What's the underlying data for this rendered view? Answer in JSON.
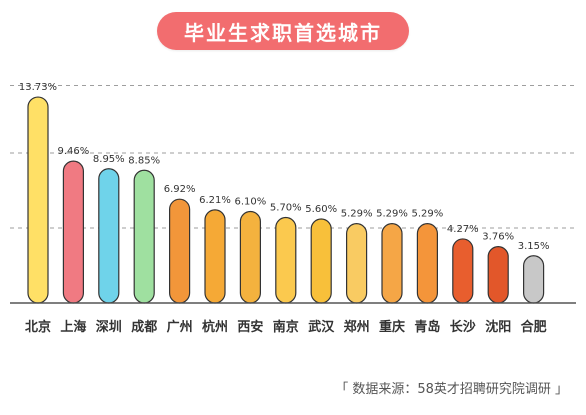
{
  "title": "毕业生求职首选城市",
  "source_text": "「 数据来源：58英才招聘研究院调研 」",
  "chart_data": {
    "type": "bar",
    "title": "毕业生求职首选城市",
    "xlabel": "",
    "ylabel": "",
    "ylim": [
      0,
      14
    ],
    "grid": "dashed-horizontal",
    "categories": [
      "北京",
      "上海",
      "深圳",
      "成都",
      "广州",
      "杭州",
      "西安",
      "南京",
      "武汉",
      "郑州",
      "重庆",
      "青岛",
      "长沙",
      "沈阳",
      "合肥"
    ],
    "values": [
      13.73,
      9.46,
      8.95,
      8.85,
      6.92,
      6.21,
      6.1,
      5.7,
      5.6,
      5.29,
      5.29,
      5.29,
      4.27,
      3.76,
      3.15
    ],
    "labels": [
      "13.73%",
      "9.46%",
      "8.95%",
      "8.85%",
      "6.92%",
      "6.21%",
      "6.10%",
      "5.70%",
      "5.60%",
      "5.29%",
      "5.29%",
      "5.29%",
      "4.27%",
      "3.76%",
      "3.15%"
    ],
    "colors": [
      "#FFE066",
      "#F07A82",
      "#6FD3EA",
      "#9FE0A0",
      "#F2963A",
      "#F5A936",
      "#F4B23E",
      "#FBC94E",
      "#F8C03A",
      "#F9CB62",
      "#F5A646",
      "#F4953A",
      "#E85E2E",
      "#E2572A",
      "#C8C8C8"
    ],
    "axis_color": "#555555",
    "grid_color": "#9E9E9E"
  }
}
